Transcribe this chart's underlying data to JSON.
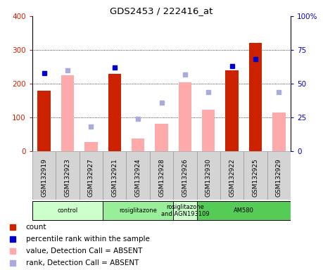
{
  "title": "GDS2453 / 222416_at",
  "samples": [
    "GSM132919",
    "GSM132923",
    "GSM132927",
    "GSM132921",
    "GSM132924",
    "GSM132928",
    "GSM132926",
    "GSM132930",
    "GSM132922",
    "GSM132925",
    "GSM132929"
  ],
  "red_bars": [
    180,
    null,
    null,
    230,
    null,
    null,
    null,
    null,
    240,
    320,
    null
  ],
  "pink_bars": [
    null,
    225,
    28,
    null,
    38,
    82,
    205,
    123,
    null,
    null,
    115
  ],
  "blue_squares_pct": [
    58,
    null,
    null,
    62,
    null,
    null,
    null,
    null,
    63,
    68,
    null
  ],
  "lavender_squares_pct": [
    null,
    60,
    18,
    null,
    24,
    36,
    57,
    44,
    null,
    null,
    44
  ],
  "ylim_left": [
    0,
    400
  ],
  "ylim_right": [
    0,
    100
  ],
  "yticks_left": [
    0,
    100,
    200,
    300,
    400
  ],
  "ytick_labels_right": [
    "0",
    "25",
    "50",
    "75",
    "100%"
  ],
  "agent_groups": [
    {
      "label": "control",
      "start": 0,
      "end": 2,
      "color": "#ccffcc"
    },
    {
      "label": "rosiglitazone",
      "start": 3,
      "end": 5,
      "color": "#99ee99"
    },
    {
      "label": "rosiglitazone\nand AGN193109",
      "start": 6,
      "end": 6,
      "color": "#ccffcc"
    },
    {
      "label": "AM580",
      "start": 7,
      "end": 10,
      "color": "#55cc55"
    }
  ],
  "legend_items": [
    {
      "color": "#cc2200",
      "label": "count"
    },
    {
      "color": "#0000cc",
      "label": "percentile rank within the sample"
    },
    {
      "color": "#ffaaaa",
      "label": "value, Detection Call = ABSENT"
    },
    {
      "color": "#aaaadd",
      "label": "rank, Detection Call = ABSENT"
    }
  ],
  "red_color": "#cc2200",
  "pink_color": "#ffaaaa",
  "blue_color": "#0000cc",
  "lavender_color": "#aaaadd",
  "gray_bg": "#d4d4d4",
  "fig_bg": "#f0f0f0"
}
